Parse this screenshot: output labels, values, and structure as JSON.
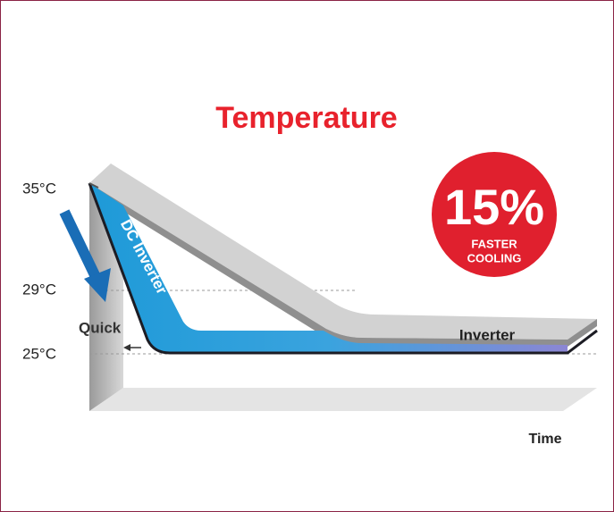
{
  "title": "Temperature",
  "y_labels": [
    "35°C",
    "29°C",
    "25°C"
  ],
  "curves": {
    "dc_inverter": "DC Inverter",
    "inverter": "Inverter"
  },
  "quick": "Quick",
  "x_label": "Time",
  "badge": {
    "value": "15%",
    "line1": "FASTER",
    "line2": "COOLING"
  }
}
